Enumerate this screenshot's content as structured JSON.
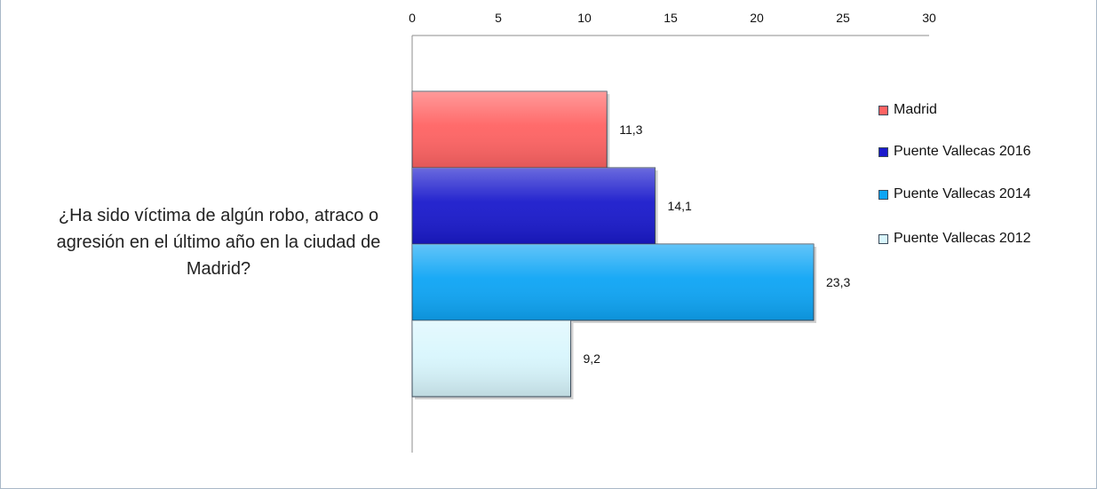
{
  "chart_data": {
    "type": "bar",
    "orientation": "horizontal",
    "categories": [
      "¿Ha sido víctima de algún robo, atraco o agresión en el último año en la ciudad de Madrid?"
    ],
    "series": [
      {
        "name": "Madrid",
        "values": [
          11.3
        ],
        "label": "11,3",
        "color": "#ff6363"
      },
      {
        "name": "Puente Vallecas 2016",
        "values": [
          14.1
        ],
        "label": "14,1",
        "color": "#1a1acc"
      },
      {
        "name": "Puente Vallecas 2014",
        "values": [
          23.3
        ],
        "label": "23,3",
        "color": "#0ea5f5"
      },
      {
        "name": "Puente Vallecas  2012",
        "values": [
          9.2
        ],
        "label": "9,2",
        "color": "#d8f6fd"
      }
    ],
    "xlim": [
      0,
      30
    ],
    "xticks": [
      "0",
      "5",
      "10",
      "15",
      "20",
      "25",
      "30"
    ],
    "x_axis_position": "top",
    "grid": false,
    "legend_position": "right"
  }
}
